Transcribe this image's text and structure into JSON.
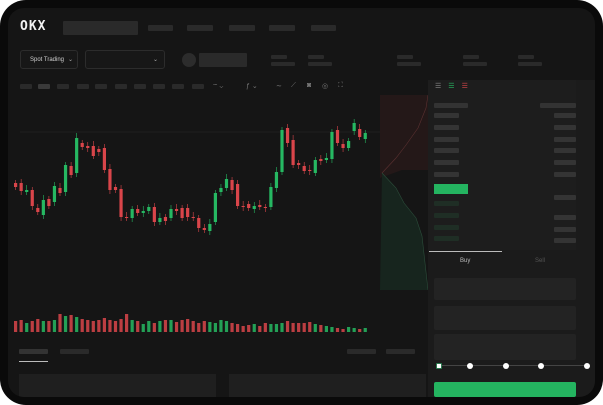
{
  "header": {
    "logo": "OKX"
  },
  "market": {
    "mode_label": "Spot Trading",
    "pair_select_value": ""
  },
  "order_form": {
    "tabs": [
      {
        "label": "Buy",
        "active": true
      },
      {
        "label": "Sell",
        "active": false
      }
    ],
    "leverage_slider_value": 0
  },
  "colors": {
    "up": "#26b862",
    "down": "#d9454a",
    "accent": "#24b460",
    "background": "#151515"
  },
  "icons": [
    "orderbook-both-icon",
    "orderbook-bids-icon",
    "orderbook-asks-icon",
    "line-tool-icon",
    "ruler-icon",
    "camera-icon",
    "settings-icon",
    "fullscreen-icon"
  ]
}
